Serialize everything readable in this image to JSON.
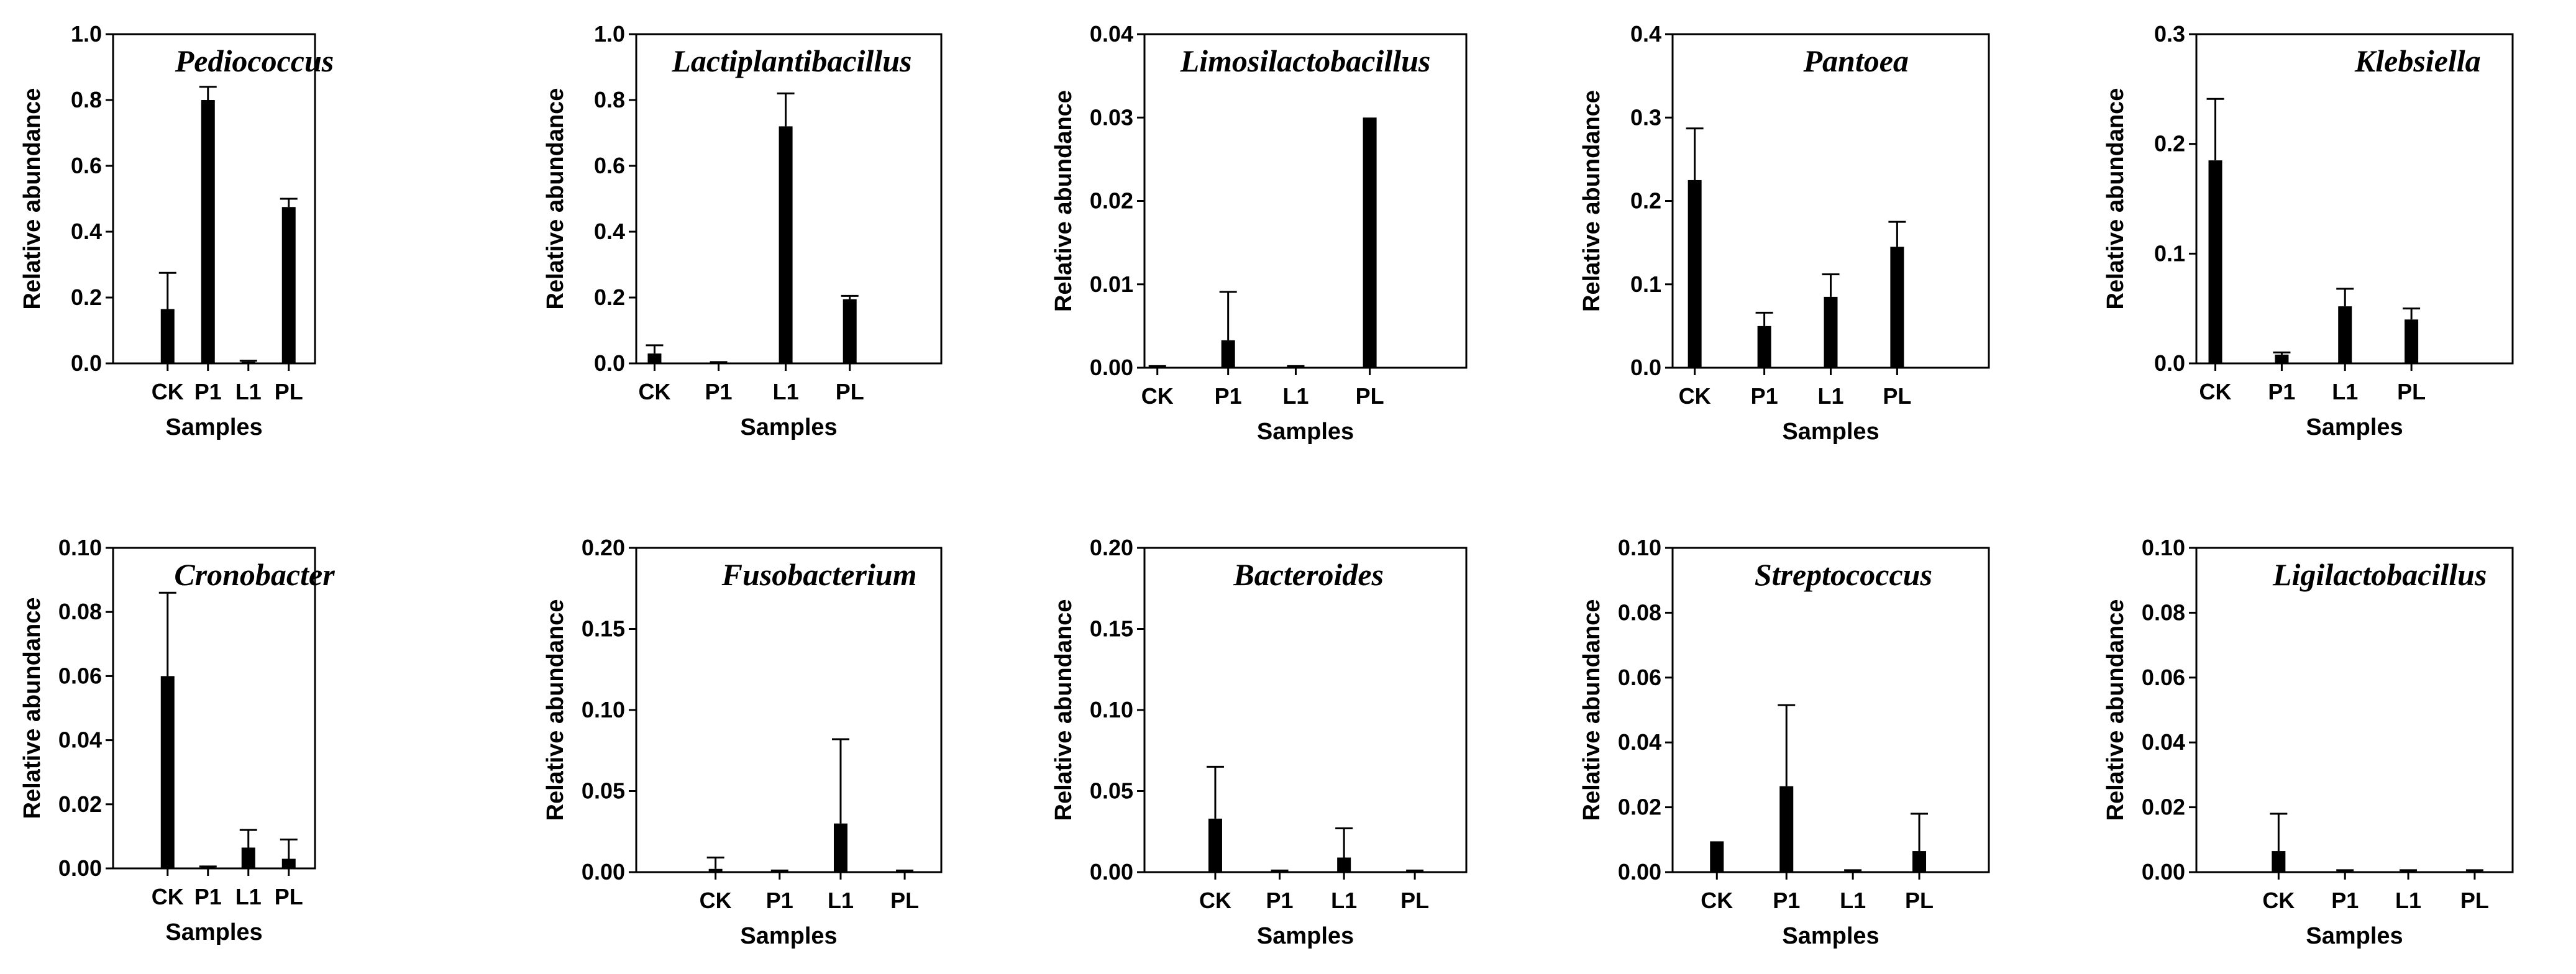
{
  "figure": {
    "id": "genus-relative-abundance"
  },
  "chart_data": [
    {
      "type": "bar",
      "title": "Pediococcus",
      "xlabel": "Samples",
      "ylabel": "Relative abundance",
      "categories": [
        "CK",
        "P1",
        "L1",
        "PL"
      ],
      "values": [
        0.165,
        0.8,
        0.005,
        0.475
      ],
      "errors": [
        0.11,
        0.04,
        0.003,
        0.025
      ],
      "ylim": [
        0,
        1.0
      ],
      "yticks": [
        "0.0",
        "0.2",
        "0.4",
        "0.6",
        "0.8",
        "1.0"
      ]
    },
    {
      "type": "bar",
      "title": "Lactiplantibacillus",
      "xlabel": "Samples",
      "ylabel": "Relative abundance",
      "categories": [
        "CK",
        "P1",
        "L1",
        "PL"
      ],
      "values": [
        0.03,
        0.002,
        0.72,
        0.195
      ],
      "errors": [
        0.025,
        0.002,
        0.1,
        0.01
      ],
      "ylim": [
        0,
        1.0
      ],
      "yticks": [
        "0.0",
        "0.2",
        "0.4",
        "0.6",
        "0.8",
        "1.0"
      ]
    },
    {
      "type": "bar",
      "title": "Limosilactobacillus",
      "xlabel": "Samples",
      "ylabel": "Relative abundance",
      "categories": [
        "CK",
        "P1",
        "L1",
        "PL"
      ],
      "values": [
        0.0001,
        0.0033,
        0.0001,
        0.03
      ],
      "errors": [
        0.0001,
        0.0058,
        0.0001,
        0.0
      ],
      "ylim": [
        0,
        0.04
      ],
      "yticks": [
        "0.00",
        "0.01",
        "0.02",
        "0.03",
        "0.04"
      ]
    },
    {
      "type": "bar",
      "title": "Pantoea",
      "xlabel": "Samples",
      "ylabel": "Relative abundance",
      "categories": [
        "CK",
        "P1",
        "L1",
        "PL"
      ],
      "values": [
        0.225,
        0.05,
        0.085,
        0.145
      ],
      "errors": [
        0.062,
        0.016,
        0.027,
        0.03
      ],
      "ylim": [
        0,
        0.4
      ],
      "yticks": [
        "0.0",
        "0.1",
        "0.2",
        "0.3",
        "0.4"
      ]
    },
    {
      "type": "bar",
      "title": "Klebsiella",
      "xlabel": "Samples",
      "ylabel": "Relative abundance",
      "categories": [
        "CK",
        "P1",
        "L1",
        "PL"
      ],
      "values": [
        0.185,
        0.008,
        0.052,
        0.04
      ],
      "errors": [
        0.056,
        0.002,
        0.016,
        0.01
      ],
      "ylim": [
        0,
        0.3
      ],
      "yticks": [
        "0.0",
        "0.1",
        "0.2",
        "0.3"
      ]
    },
    {
      "type": "bar",
      "title": "Cronobacter",
      "xlabel": "Samples",
      "ylabel": "Relative abundance",
      "categories": [
        "CK",
        "P1",
        "L1",
        "PL"
      ],
      "values": [
        0.06,
        0.0003,
        0.0065,
        0.003
      ],
      "errors": [
        0.026,
        0.0003,
        0.0055,
        0.006
      ],
      "ylim": [
        0,
        0.1
      ],
      "yticks": [
        "0.00",
        "0.02",
        "0.04",
        "0.06",
        "0.08",
        "0.10"
      ]
    },
    {
      "type": "bar",
      "title": "Fusobacterium",
      "xlabel": "Samples",
      "ylabel": "Relative abundance",
      "categories": [
        "CK",
        "P1",
        "L1",
        "PL"
      ],
      "values": [
        0.002,
        0.0005,
        0.03,
        0.0005
      ],
      "errors": [
        0.007,
        0.0005,
        0.052,
        0.0005
      ],
      "ylim": [
        0,
        0.2
      ],
      "yticks": [
        "0.00",
        "0.05",
        "0.10",
        "0.15",
        "0.20"
      ]
    },
    {
      "type": "bar",
      "title": "Bacteroides",
      "xlabel": "Samples",
      "ylabel": "Relative abundance",
      "categories": [
        "CK",
        "P1",
        "L1",
        "PL"
      ],
      "values": [
        0.033,
        0.0005,
        0.009,
        0.0005
      ],
      "errors": [
        0.032,
        0.0005,
        0.018,
        0.0005
      ],
      "ylim": [
        0,
        0.2
      ],
      "yticks": [
        "0.00",
        "0.05",
        "0.10",
        "0.15",
        "0.20"
      ]
    },
    {
      "type": "bar",
      "title": "Streptococcus",
      "xlabel": "Samples",
      "ylabel": "Relative abundance",
      "categories": [
        "CK",
        "P1",
        "L1",
        "PL"
      ],
      "values": [
        0.0095,
        0.0265,
        0.0003,
        0.0065
      ],
      "errors": [
        0.0,
        0.025,
        0.0003,
        0.0115
      ],
      "ylim": [
        0,
        0.1
      ],
      "yticks": [
        "0.00",
        "0.02",
        "0.04",
        "0.06",
        "0.08",
        "0.10"
      ]
    },
    {
      "type": "bar",
      "title": "Ligilactobacillus",
      "xlabel": "Samples",
      "ylabel": "Relative abundance",
      "categories": [
        "CK",
        "P1",
        "L1",
        "PL"
      ],
      "values": [
        0.0065,
        0.0003,
        0.0003,
        0.0003
      ],
      "errors": [
        0.0115,
        0.0003,
        0.0003,
        0.0003
      ],
      "ylim": [
        0,
        0.1
      ],
      "yticks": [
        "0.00",
        "0.02",
        "0.04",
        "0.06",
        "0.08",
        "0.10"
      ]
    }
  ]
}
